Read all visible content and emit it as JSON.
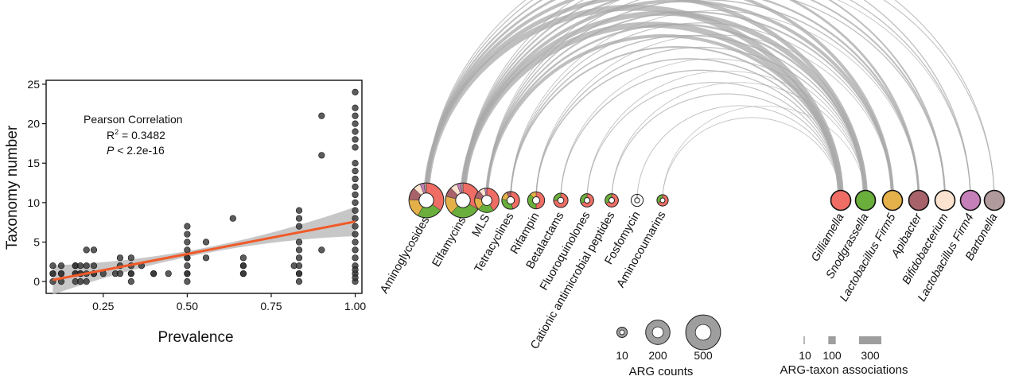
{
  "scatter": {
    "xlabel": "Prevalence",
    "ylabel": "Taxonomy number",
    "annotation": {
      "line1": "Pearson Correlation",
      "r2_prefix": "R",
      "r2_sup": "2",
      "r2_value": " = 0.3482",
      "p_letter": "P",
      "p_value": " < 2.2e-16"
    },
    "colors": {
      "points": "#333333",
      "trend": "#f05a28",
      "ribbon": "#bdbdbd"
    }
  },
  "chart_data": [
    {
      "type": "scatter",
      "xlabel": "Prevalence",
      "ylabel": "Taxonomy number",
      "xlim": [
        0.08,
        1.02
      ],
      "ylim": [
        -1.5,
        25.5
      ],
      "x_ticks": [
        0.25,
        0.5,
        0.75,
        1.0
      ],
      "x_tick_labels": [
        "0.25",
        "0.50",
        "0.75",
        "1.00"
      ],
      "y_ticks": [
        0,
        5,
        10,
        15,
        20,
        25
      ],
      "y_tick_labels": [
        "0",
        "5",
        "10",
        "15",
        "20",
        "25"
      ],
      "grid": false,
      "trend": {
        "x": [
          0.1,
          1.0
        ],
        "y": [
          0.2,
          7.6
        ]
      },
      "points": [
        [
          0.1,
          0
        ],
        [
          0.1,
          1
        ],
        [
          0.1,
          2
        ],
        [
          0.125,
          0
        ],
        [
          0.125,
          1
        ],
        [
          0.125,
          2
        ],
        [
          0.125,
          1
        ],
        [
          0.1,
          1
        ],
        [
          0.167,
          0
        ],
        [
          0.167,
          1
        ],
        [
          0.167,
          2
        ],
        [
          0.167,
          1
        ],
        [
          0.167,
          2
        ],
        [
          0.182,
          0
        ],
        [
          0.182,
          1
        ],
        [
          0.182,
          2
        ],
        [
          0.182,
          1
        ],
        [
          0.2,
          0
        ],
        [
          0.2,
          1
        ],
        [
          0.2,
          2
        ],
        [
          0.2,
          4
        ],
        [
          0.222,
          1
        ],
        [
          0.222,
          2
        ],
        [
          0.222,
          4
        ],
        [
          0.222,
          1
        ],
        [
          0.25,
          1
        ],
        [
          0.286,
          1
        ],
        [
          0.3,
          1
        ],
        [
          0.3,
          3
        ],
        [
          0.3,
          2
        ],
        [
          0.333,
          1
        ],
        [
          0.333,
          2
        ],
        [
          0.333,
          3
        ],
        [
          0.333,
          0
        ],
        [
          0.333,
          1
        ],
        [
          0.364,
          2
        ],
        [
          0.4,
          1
        ],
        [
          0.4,
          1
        ],
        [
          0.444,
          1
        ],
        [
          0.5,
          0
        ],
        [
          0.5,
          1
        ],
        [
          0.5,
          2
        ],
        [
          0.5,
          3
        ],
        [
          0.5,
          4
        ],
        [
          0.5,
          5
        ],
        [
          0.5,
          6
        ],
        [
          0.5,
          7
        ],
        [
          0.5,
          1
        ],
        [
          0.5,
          3
        ],
        [
          0.556,
          3
        ],
        [
          0.556,
          5
        ],
        [
          0.636,
          8
        ],
        [
          0.667,
          1
        ],
        [
          0.667,
          2
        ],
        [
          0.667,
          3
        ],
        [
          0.667,
          1
        ],
        [
          0.667,
          2
        ],
        [
          0.818,
          2
        ],
        [
          0.833,
          0
        ],
        [
          0.833,
          1
        ],
        [
          0.833,
          2
        ],
        [
          0.833,
          3
        ],
        [
          0.833,
          4
        ],
        [
          0.833,
          5
        ],
        [
          0.833,
          7
        ],
        [
          0.833,
          8
        ],
        [
          0.833,
          9
        ],
        [
          0.833,
          1
        ],
        [
          0.9,
          4
        ],
        [
          0.9,
          16
        ],
        [
          0.9,
          21
        ],
        [
          1.0,
          0
        ],
        [
          1.0,
          1
        ],
        [
          1.0,
          2
        ],
        [
          1.0,
          3
        ],
        [
          1.0,
          4
        ],
        [
          1.0,
          5
        ],
        [
          1.0,
          6
        ],
        [
          1.0,
          7
        ],
        [
          1.0,
          8
        ],
        [
          1.0,
          9
        ],
        [
          1.0,
          10
        ],
        [
          1.0,
          11
        ],
        [
          1.0,
          12
        ],
        [
          1.0,
          13
        ],
        [
          1.0,
          14
        ],
        [
          1.0,
          15
        ],
        [
          1.0,
          17
        ],
        [
          1.0,
          18
        ],
        [
          1.0,
          19
        ],
        [
          1.0,
          20
        ],
        [
          1.0,
          21
        ],
        [
          1.0,
          22
        ],
        [
          1.0,
          24
        ],
        [
          1.0,
          0.5
        ],
        [
          1.0,
          1.5
        ]
      ]
    },
    {
      "type": "arc-network",
      "ar_classes": [
        {
          "name": "Aminoglycosides",
          "counts": 500
        },
        {
          "name": "Elfamycins",
          "counts": 500
        },
        {
          "name": "MLS",
          "counts": 200
        },
        {
          "name": "Tetracyclines",
          "counts": 80
        },
        {
          "name": "Rifampin",
          "counts": 70
        },
        {
          "name": "Betalactams",
          "counts": 40
        },
        {
          "name": "Fluoroquinolones",
          "counts": 30
        },
        {
          "name": "Cationic antimicrobial peptides",
          "counts": 30
        },
        {
          "name": "Fosfomycin",
          "counts": 20
        },
        {
          "name": "Aminocoumarins",
          "counts": 15
        }
      ],
      "taxa": [
        {
          "name": "Gilliamella",
          "color": "#ef6d64"
        },
        {
          "name": "Snodgrassella",
          "color": "#6aae3b"
        },
        {
          "name": "Lactobacillus Firm5",
          "color": "#e4b04a"
        },
        {
          "name": "Apibacter",
          "color": "#a7626a"
        },
        {
          "name": "Bifidobacterium",
          "color": "#fbe3cf"
        },
        {
          "name": "Lactobacillus Firm4",
          "color": "#c57fb9"
        },
        {
          "name": "Bartonella",
          "color": "#b19a9b"
        }
      ],
      "links": [
        [
          0,
          0,
          300
        ],
        [
          0,
          1,
          200
        ],
        [
          0,
          2,
          150
        ],
        [
          0,
          3,
          100
        ],
        [
          0,
          4,
          60
        ],
        [
          0,
          5,
          30
        ],
        [
          0,
          6,
          20
        ],
        [
          1,
          0,
          300
        ],
        [
          1,
          1,
          250
        ],
        [
          1,
          2,
          150
        ],
        [
          1,
          3,
          80
        ],
        [
          1,
          4,
          60
        ],
        [
          1,
          5,
          30
        ],
        [
          1,
          6,
          20
        ],
        [
          2,
          0,
          150
        ],
        [
          2,
          1,
          80
        ],
        [
          2,
          2,
          60
        ],
        [
          2,
          3,
          40
        ],
        [
          2,
          4,
          30
        ],
        [
          2,
          5,
          10
        ],
        [
          3,
          0,
          60
        ],
        [
          3,
          1,
          40
        ],
        [
          3,
          2,
          20
        ],
        [
          3,
          3,
          10
        ],
        [
          4,
          0,
          40
        ],
        [
          4,
          1,
          30
        ],
        [
          4,
          2,
          10
        ],
        [
          5,
          0,
          30
        ],
        [
          5,
          1,
          10
        ],
        [
          6,
          0,
          20
        ],
        [
          6,
          1,
          10
        ],
        [
          7,
          0,
          20
        ],
        [
          7,
          1,
          10
        ],
        [
          8,
          0,
          15
        ],
        [
          9,
          0,
          10
        ],
        [
          9,
          1,
          5
        ]
      ],
      "counts_legend": {
        "title": "ARG counts",
        "values": [
          10,
          200,
          500
        ],
        "labels": [
          "10",
          "200",
          "500"
        ]
      },
      "assoc_legend": {
        "title": "ARG-taxon associations",
        "values": [
          10,
          100,
          300
        ],
        "labels": [
          "10",
          "100",
          "300"
        ]
      },
      "arc_color": "#a9a9a9"
    }
  ]
}
